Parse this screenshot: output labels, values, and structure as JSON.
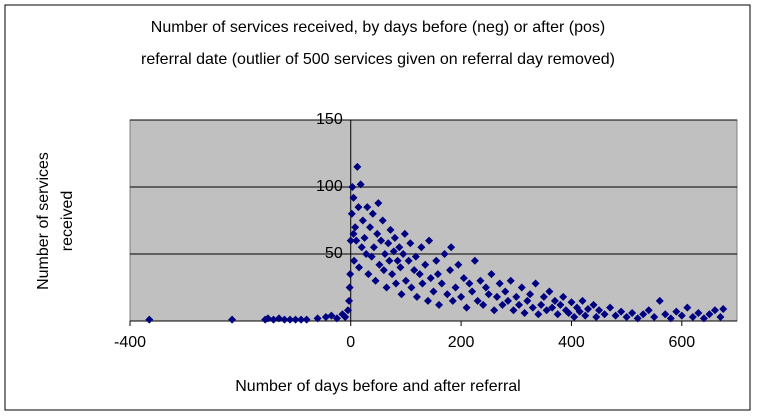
{
  "chart_data": {
    "type": "scatter",
    "title": [
      "Number of services received, by days before (neg) or after (pos)",
      "referral date (outlier of 500 services given on referral day removed)"
    ],
    "x_label": "Number of days before and after referral",
    "y_label": [
      "Number of services",
      "received"
    ],
    "xlim": [
      -400,
      700
    ],
    "xticks": [
      -400,
      0,
      200,
      400,
      600
    ],
    "ylim": [
      0,
      150
    ],
    "yticks": [
      50,
      100,
      150
    ],
    "grid": true,
    "color": "#000080",
    "plot_background": "#c0c0c0",
    "series": [
      {
        "name": "Services",
        "x": [
          -365,
          -215,
          -155,
          -150,
          -140,
          -130,
          -120,
          -110,
          -100,
          -90,
          -80,
          -60,
          -45,
          -35,
          -25,
          -15,
          -10,
          -5,
          -3,
          -2,
          -1,
          0,
          2,
          3,
          5,
          5,
          6,
          8,
          10,
          12,
          14,
          15,
          18,
          20,
          22,
          25,
          28,
          30,
          32,
          35,
          38,
          40,
          42,
          45,
          48,
          50,
          52,
          55,
          58,
          60,
          62,
          65,
          68,
          70,
          72,
          75,
          78,
          80,
          82,
          85,
          88,
          90,
          92,
          95,
          98,
          100,
          105,
          108,
          110,
          115,
          118,
          120,
          125,
          128,
          130,
          135,
          140,
          142,
          145,
          150,
          155,
          158,
          160,
          165,
          170,
          175,
          180,
          182,
          185,
          190,
          195,
          200,
          205,
          210,
          215,
          220,
          225,
          230,
          235,
          240,
          245,
          250,
          255,
          260,
          265,
          270,
          275,
          280,
          285,
          290,
          295,
          300,
          305,
          310,
          315,
          320,
          325,
          330,
          335,
          340,
          345,
          350,
          355,
          360,
          365,
          370,
          375,
          380,
          385,
          390,
          395,
          400,
          405,
          410,
          415,
          420,
          425,
          430,
          440,
          445,
          450,
          460,
          470,
          480,
          490,
          500,
          510,
          520,
          530,
          540,
          550,
          560,
          570,
          580,
          590,
          600,
          610,
          620,
          630,
          640,
          650,
          660,
          670,
          675
        ],
        "values": [
          1,
          1,
          1,
          2,
          1,
          2,
          1,
          1,
          1,
          1,
          1,
          2,
          3,
          4,
          2,
          5,
          3,
          8,
          15,
          25,
          35,
          60,
          80,
          100,
          92,
          65,
          45,
          70,
          60,
          115,
          85,
          40,
          102,
          55,
          75,
          62,
          50,
          85,
          35,
          70,
          48,
          80,
          55,
          30,
          65,
          88,
          42,
          60,
          75,
          38,
          50,
          25,
          58,
          45,
          68,
          35,
          52,
          62,
          28,
          45,
          55,
          40,
          20,
          50,
          65,
          30,
          45,
          58,
          25,
          38,
          48,
          18,
          35,
          55,
          28,
          42,
          15,
          60,
          32,
          22,
          45,
          35,
          12,
          28,
          50,
          20,
          38,
          55,
          15,
          25,
          42,
          18,
          32,
          10,
          28,
          22,
          45,
          15,
          30,
          12,
          25,
          20,
          35,
          8,
          18,
          28,
          12,
          22,
          15,
          30,
          8,
          18,
          12,
          25,
          6,
          15,
          20,
          10,
          28,
          5,
          12,
          18,
          8,
          22,
          10,
          15,
          5,
          12,
          18,
          8,
          6,
          14,
          3,
          10,
          7,
          15,
          4,
          9,
          12,
          3,
          8,
          5,
          10,
          4,
          7,
          3,
          6,
          2,
          5,
          8,
          3,
          15,
          5,
          2,
          7,
          4,
          10,
          3,
          6,
          2,
          5,
          8,
          3,
          9
        ]
      }
    ]
  }
}
